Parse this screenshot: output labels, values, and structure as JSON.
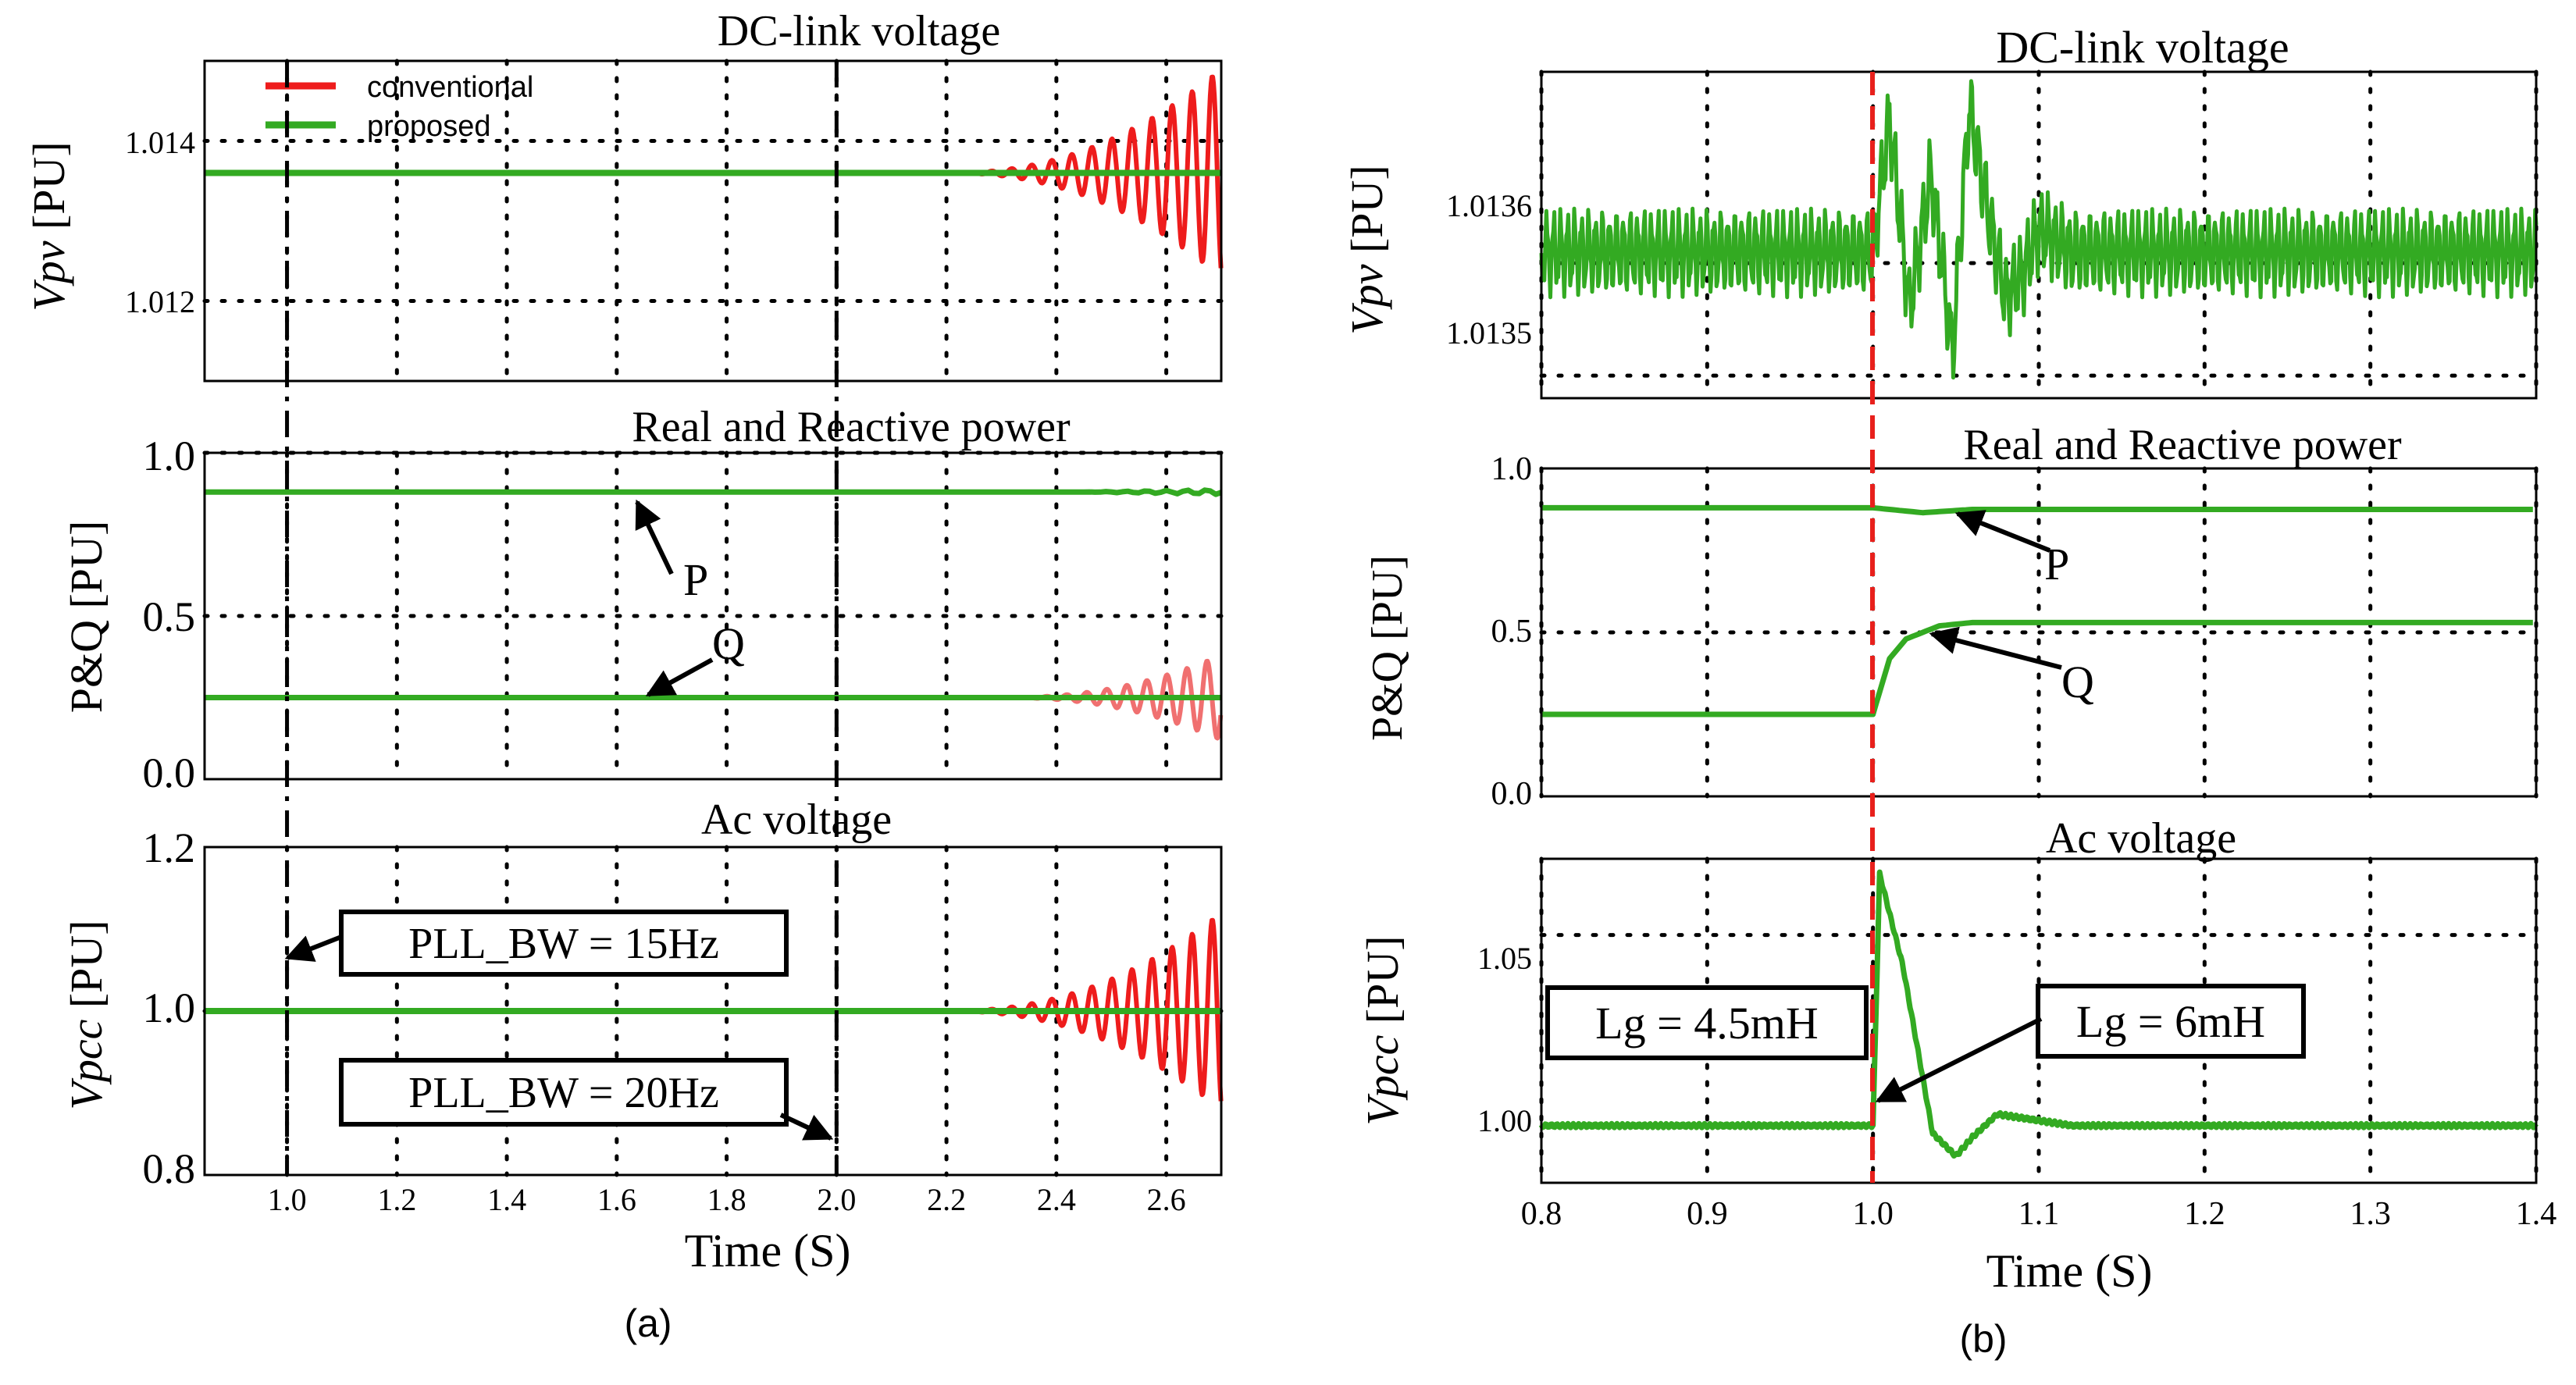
{
  "panel_a": {
    "caption": "(a)",
    "xlabel": "Time (S)",
    "xticks": [
      "1.0",
      "1.2",
      "1.4",
      "1.6",
      "1.8",
      "2.0",
      "2.2",
      "2.4",
      "2.6"
    ],
    "legend": [
      {
        "label": "conventional",
        "color": "#ee1c1c"
      },
      {
        "label": "proposed",
        "color": "#33aa22"
      }
    ],
    "top": {
      "title": "DC-link voltage",
      "ylabel_main": "Vpv",
      "ylabel_unit": " [PU]",
      "yticks": [
        "1.014",
        "1.012"
      ]
    },
    "mid": {
      "title": "Real and Reactive power",
      "ylabel": "P&Q [PU]",
      "yticks": [
        "1.0",
        "0.5",
        "0.0"
      ],
      "label_p": "P",
      "label_q": "Q"
    },
    "bot": {
      "title": "Ac  voltage",
      "ylabel_main": "Vpcc",
      "ylabel_unit": " [PU]",
      "yticks": [
        "1.2",
        "1.0",
        "0.8"
      ],
      "box1": "PLL_BW = 15Hz",
      "box2": "PLL_BW = 20Hz"
    }
  },
  "panel_b": {
    "caption": "(b)",
    "xlabel": "Time (S)",
    "xticks": [
      "0.8",
      "0.9",
      "1.0",
      "1.1",
      "1.2",
      "1.3",
      "1.4"
    ],
    "top": {
      "title": "DC-link voltage",
      "ylabel_main": "Vpv",
      "ylabel_unit": " [PU]",
      "yticks": [
        "1.0136",
        "1.0135"
      ]
    },
    "mid": {
      "title": "Real and Reactive power",
      "ylabel": "P&Q [PU]",
      "yticks": [
        "1.0",
        "0.5",
        "0.0"
      ],
      "label_p": "P",
      "label_q": "Q"
    },
    "bot": {
      "title": "Ac  voltage",
      "ylabel_main": "Vpcc",
      "ylabel_unit": " [PU]",
      "yticks": [
        "1.05",
        "1.00"
      ],
      "box1": "Lg = 4.5mH",
      "box2": "Lg = 6mH"
    }
  },
  "chart_data": [
    {
      "type": "line",
      "title": "DC-link voltage",
      "panel": "a-top",
      "xlabel": "Time (S)",
      "ylabel": "Vpv [PU]",
      "xlim": [
        0.85,
        2.7
      ],
      "ylim": [
        1.011,
        1.015
      ],
      "series": [
        {
          "name": "conventional",
          "x": [
            0.85,
            2.2,
            2.7
          ],
          "y": [
            1.0136,
            1.0136,
            1.0136
          ],
          "growing_oscillation_from": 2.2,
          "peak_deviation_at_end": 0.0013
        },
        {
          "name": "proposed",
          "x": [
            0.85,
            2.7
          ],
          "y": [
            1.0136,
            1.0136
          ]
        }
      ],
      "vlines": [
        1.0,
        2.0
      ]
    },
    {
      "type": "line",
      "title": "Real and Reactive power",
      "panel": "a-mid",
      "xlim": [
        0.85,
        2.7
      ],
      "ylim": [
        0.0,
        1.0
      ],
      "series": [
        {
          "name": "P",
          "x": [
            0.85,
            2.7
          ],
          "y": [
            0.88,
            0.88
          ]
        },
        {
          "name": "Q",
          "x": [
            0.85,
            2.7
          ],
          "y": [
            0.25,
            0.25
          ],
          "conventional_oscillation_from": 2.3,
          "peak_deviation_at_end": 0.13
        }
      ]
    },
    {
      "type": "line",
      "title": "Ac  voltage",
      "panel": "a-bot",
      "xlim": [
        0.85,
        2.7
      ],
      "ylim": [
        0.8,
        1.2
      ],
      "series": [
        {
          "name": "conventional",
          "x": [
            0.85,
            2.2,
            2.7
          ],
          "y": [
            1.0,
            1.0,
            1.0
          ],
          "growing_oscillation_from": 2.2,
          "peak_deviation_at_end": 0.12
        },
        {
          "name": "proposed",
          "x": [
            0.85,
            2.7
          ],
          "y": [
            1.0,
            1.0
          ]
        }
      ]
    },
    {
      "type": "line",
      "title": "DC-link voltage",
      "panel": "b-top",
      "xlim": [
        0.8,
        1.4
      ],
      "ylim": [
        1.01348,
        1.01377
      ],
      "series": [
        {
          "name": "Vpv",
          "x": [
            0.8,
            1.0,
            1.01,
            1.022,
            1.035,
            1.048,
            1.058,
            1.07,
            1.08,
            1.09,
            1.1,
            1.12,
            1.4
          ],
          "y": [
            1.01361,
            1.01361,
            1.01373,
            1.01356,
            1.01368,
            1.01352,
            1.01374,
            1.01364,
            1.01357,
            1.01359,
            1.01363,
            1.01361,
            1.01361
          ],
          "ripple": 3e-05
        }
      ],
      "vlines": [
        1.0
      ]
    },
    {
      "type": "line",
      "title": "Real and Reactive power",
      "panel": "b-mid",
      "xlim": [
        0.8,
        1.4
      ],
      "ylim": [
        0.0,
        1.0
      ],
      "series": [
        {
          "name": "P",
          "x": [
            0.8,
            1.0,
            1.03,
            1.06,
            1.4
          ],
          "y": [
            0.88,
            0.88,
            0.865,
            0.875,
            0.875
          ]
        },
        {
          "name": "Q",
          "x": [
            0.8,
            1.0,
            1.01,
            1.02,
            1.04,
            1.06,
            1.4
          ],
          "y": [
            0.25,
            0.25,
            0.42,
            0.48,
            0.52,
            0.53,
            0.53
          ]
        }
      ]
    },
    {
      "type": "line",
      "title": "Ac  voltage",
      "panel": "b-bot",
      "xlim": [
        0.8,
        1.4
      ],
      "ylim": [
        0.985,
        1.07
      ],
      "series": [
        {
          "name": "Vpcc",
          "x": [
            0.8,
            1.0,
            1.004,
            1.018,
            1.036,
            1.05,
            1.06,
            1.075,
            1.09,
            1.12,
            1.4
          ],
          "y": [
            1.0,
            1.0,
            1.066,
            1.042,
            0.998,
            0.992,
            0.997,
            1.003,
            1.002,
            1.0,
            1.0
          ]
        }
      ],
      "vlines": [
        1.0
      ]
    }
  ]
}
